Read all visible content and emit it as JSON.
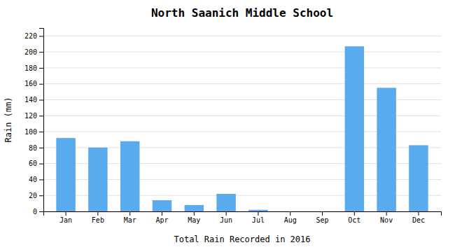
{
  "chart_data": {
    "type": "bar",
    "title": "North Saanich Middle School",
    "xlabel": "Total Rain Recorded in 2016",
    "ylabel": "Rain (mm)",
    "categories": [
      "Jan",
      "Feb",
      "Mar",
      "Apr",
      "May",
      "Jun",
      "Jul",
      "Aug",
      "Sep",
      "Oct",
      "Nov",
      "Dec"
    ],
    "values": [
      92,
      80,
      88,
      14,
      8,
      22,
      2,
      0,
      0,
      207,
      155,
      83
    ],
    "color": "#5aabee",
    "ylim": [
      0,
      230
    ],
    "yticks": [
      0,
      20,
      40,
      60,
      80,
      100,
      120,
      140,
      160,
      180,
      200,
      220
    ],
    "grid": true
  }
}
